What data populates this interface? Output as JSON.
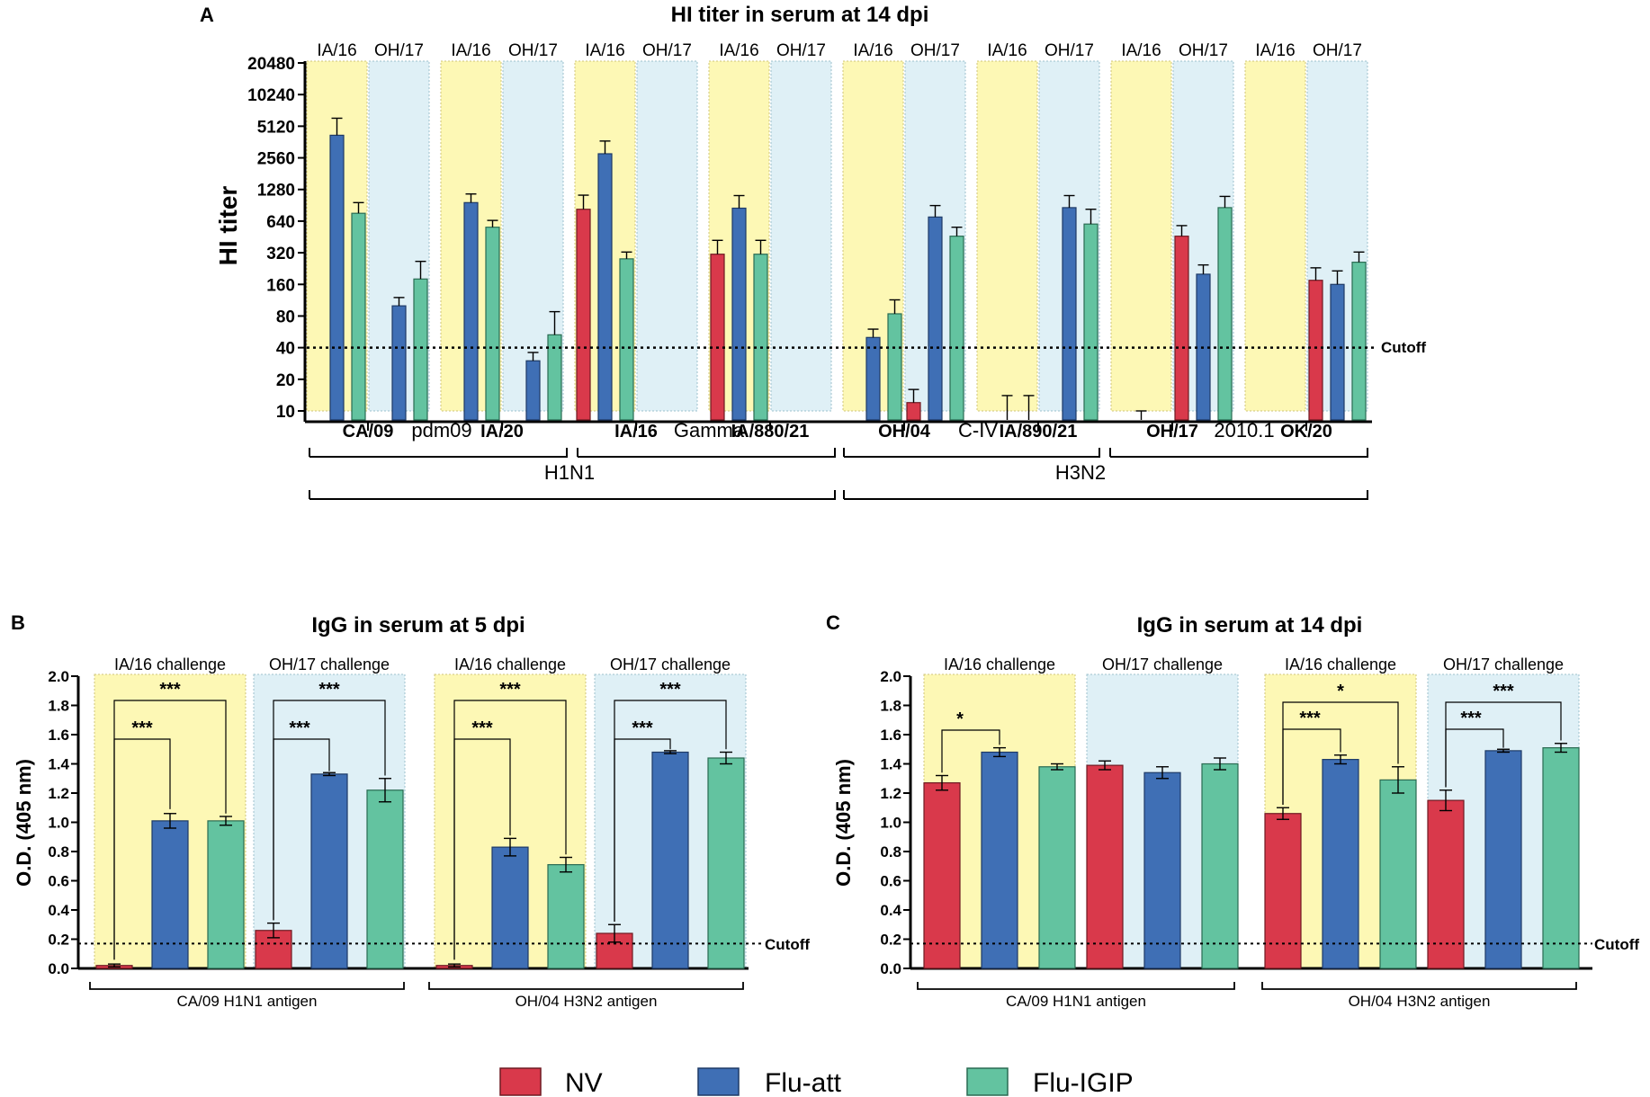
{
  "colors": {
    "NV": "#d9394b",
    "Flu-att": "#3f6fb5",
    "Flu-IGIP": "#63c3a0",
    "yellow": "#fdf8b5",
    "blue": "#dff0f6"
  },
  "panelA": {
    "letter": "A",
    "title": "HI titer in serum at 14 dpi",
    "ylabel": "HI titer",
    "yticks": [
      "20480",
      "10240",
      "5120",
      "2560",
      "1280",
      "640",
      "320",
      "160",
      "80",
      "40",
      "20",
      "10"
    ],
    "cutoff_label": "Cutoff",
    "sub_headers": [
      "IA/16",
      "OH/17"
    ],
    "antigens": [
      "CA/09",
      "IA/20",
      "IA/16",
      "IA/880/21",
      "OH/04",
      "IA/890/21",
      "OH/17",
      "OK/20"
    ],
    "clades": [
      "pdm09",
      "Gamma",
      "C-IV",
      "2010.1"
    ],
    "subtypes": [
      "H1N1",
      "H3N2"
    ]
  },
  "panelB": {
    "letter": "B",
    "title": "IgG in serum at 5 dpi",
    "ylabel": "O.D. (405 nm)",
    "yticks": [
      "2.0",
      "1.8",
      "1.6",
      "1.4",
      "1.2",
      "1.0",
      "0.8",
      "0.6",
      "0.4",
      "0.2",
      "0.0"
    ],
    "group_labels": [
      "IA/16 challenge",
      "OH/17 challenge",
      "IA/16 challenge",
      "OH/17 challenge"
    ],
    "antigen_labels": [
      "CA/09 H1N1 antigen",
      "OH/04 H3N2 antigen"
    ],
    "cutoff_label": "Cutoff",
    "sig": [
      "***",
      "***",
      "***",
      "***",
      "***",
      "***",
      "***",
      "***"
    ]
  },
  "panelC": {
    "letter": "C",
    "title": "IgG in serum at 14 dpi",
    "ylabel": "O.D. (405 nm)",
    "yticks": [
      "2.0",
      "1.8",
      "1.6",
      "1.4",
      "1.2",
      "1.0",
      "0.8",
      "0.6",
      "0.4",
      "0.2",
      "0.0"
    ],
    "group_labels": [
      "IA/16 challenge",
      "OH/17 challenge",
      "IA/16 challenge",
      "OH/17 challenge"
    ],
    "antigen_labels": [
      "CA/09 H1N1 antigen",
      "OH/04 H3N2 antigen"
    ],
    "cutoff_label": "Cutoff",
    "sig": [
      "*",
      "***",
      "*",
      "***",
      "***"
    ]
  },
  "legend": {
    "items": [
      "NV",
      "Flu-att",
      "Flu-IGIP"
    ]
  },
  "chart_data": [
    {
      "type": "bar",
      "title": "HI titer in serum at 14 dpi",
      "ylabel": "HI titer",
      "yscale": "log2",
      "ylim": [
        10,
        20480
      ],
      "cutoff": 40,
      "categories": [
        "CA/09 IA/16",
        "CA/09 OH/17",
        "IA/20 IA/16",
        "IA/20 OH/17",
        "IA/16 IA/16",
        "IA/16 OH/17",
        "IA/880/21 IA/16",
        "IA/880/21 OH/17",
        "OH/04 IA/16",
        "OH/04 OH/17",
        "IA/890/21 IA/16",
        "IA/890/21 OH/17",
        "OH/17 IA/16",
        "OH/17 OH/17",
        "OK/20 IA/16",
        "OK/20 OH/17"
      ],
      "series": [
        {
          "name": "NV",
          "values": [
            null,
            null,
            null,
            null,
            830,
            null,
            310,
            null,
            null,
            12,
            null,
            null,
            null,
            460,
            null,
            175
          ],
          "errors": [
            0,
            0,
            0,
            0,
            300,
            0,
            110,
            0,
            0,
            4,
            0,
            0,
            0,
            120,
            0,
            55
          ]
        },
        {
          "name": "Flu-att",
          "values": [
            4200,
            100,
            960,
            30,
            2800,
            null,
            850,
            null,
            50,
            700,
            null,
            860,
            null,
            200,
            null,
            160
          ],
          "errors": [
            1900,
            20,
            200,
            6,
            900,
            0,
            270,
            0,
            10,
            200,
            0,
            260,
            0,
            45,
            0,
            55
          ]
        },
        {
          "name": "Flu-IGIP",
          "values": [
            760,
            180,
            560,
            53,
            280,
            null,
            310,
            null,
            84,
            460,
            null,
            600,
            null,
            860,
            null,
            260
          ],
          "errors": [
            200,
            85,
            90,
            35,
            45,
            0,
            110,
            0,
            30,
            100,
            0,
            230,
            0,
            240,
            0,
            65
          ]
        }
      ],
      "error_only": [
        {
          "category": "IA/890/21 IA/16",
          "series": "Flu-att",
          "upper": 14
        },
        {
          "category": "IA/890/21 IA/16",
          "series": "Flu-IGIP",
          "upper": 14
        },
        {
          "category": "OH/17 IA/16",
          "series": "Flu-att",
          "upper": 10
        }
      ]
    },
    {
      "type": "bar",
      "title": "IgG in serum at 5 dpi",
      "ylabel": "O.D. (405 nm)",
      "ylim": [
        0,
        2.0
      ],
      "cutoff": 0.17,
      "categories": [
        "CA/09 H1N1 antigen - IA/16 challenge",
        "CA/09 H1N1 antigen - OH/17 challenge",
        "OH/04 H3N2 antigen - IA/16 challenge",
        "OH/04 H3N2 antigen - OH/17 challenge"
      ],
      "series": [
        {
          "name": "NV",
          "values": [
            0.02,
            0.26,
            0.02,
            0.24
          ],
          "errors": [
            0.01,
            0.05,
            0.01,
            0.06
          ]
        },
        {
          "name": "Flu-att",
          "values": [
            1.01,
            1.33,
            0.83,
            1.48
          ],
          "errors": [
            0.05,
            0.01,
            0.06,
            0.01
          ]
        },
        {
          "name": "Flu-IGIP",
          "values": [
            1.01,
            1.22,
            0.71,
            1.44
          ],
          "errors": [
            0.03,
            0.08,
            0.05,
            0.04
          ]
        }
      ]
    },
    {
      "type": "bar",
      "title": "IgG in serum at 14 dpi",
      "ylabel": "O.D. (405 nm)",
      "ylim": [
        0,
        2.0
      ],
      "cutoff": 0.17,
      "categories": [
        "CA/09 H1N1 antigen - IA/16 challenge",
        "CA/09 H1N1 antigen - OH/17 challenge",
        "OH/04 H3N2 antigen - IA/16 challenge",
        "OH/04 H3N2 antigen - OH/17 challenge"
      ],
      "series": [
        {
          "name": "NV",
          "values": [
            1.27,
            1.39,
            1.06,
            1.15
          ],
          "errors": [
            0.05,
            0.03,
            0.04,
            0.07
          ]
        },
        {
          "name": "Flu-att",
          "values": [
            1.48,
            1.34,
            1.43,
            1.49
          ],
          "errors": [
            0.03,
            0.04,
            0.03,
            0.01
          ]
        },
        {
          "name": "Flu-IGIP",
          "values": [
            1.38,
            1.4,
            1.29,
            1.51
          ],
          "errors": [
            0.02,
            0.04,
            0.09,
            0.03
          ]
        }
      ]
    }
  ]
}
